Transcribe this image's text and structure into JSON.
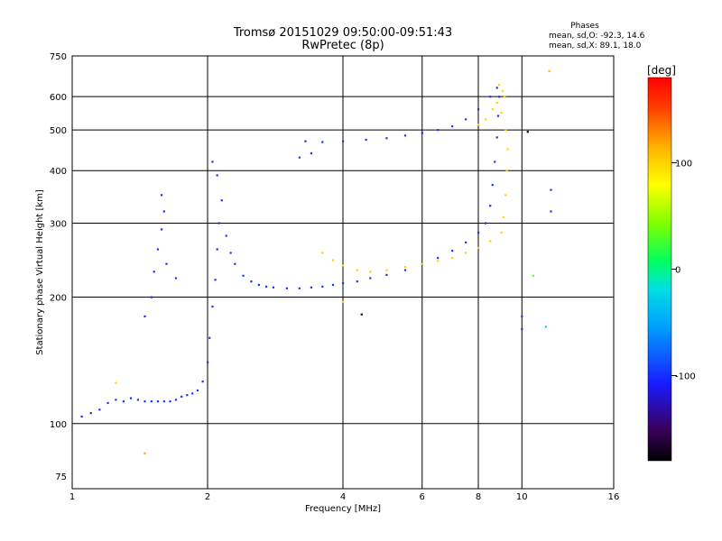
{
  "title": {
    "line1": "Tromsø 20151029 09:50:00-09:51:43",
    "line2": "RwPretec (8p)"
  },
  "phase_stats": {
    "header": "Phases",
    "line_o": "mean, sd,O: -92.3, 14.6",
    "line_x": "mean, sd,X:  89.1, 18.0"
  },
  "colorbar": {
    "label": "[deg]",
    "ticks": [
      "100",
      "0",
      "-100"
    ],
    "tick_values": [
      100,
      0,
      -100
    ],
    "range": [
      -180,
      180
    ]
  },
  "chart_data": {
    "type": "scatter",
    "title": "Tromsø 20151029 09:50:00-09:51:43",
    "subtitle": "RwPretec (8p)",
    "xlabel": "Frequency [MHz]",
    "ylabel": "Stationary phase Virtual Height [km]",
    "x_scale": "log2",
    "y_scale": "log",
    "xlim": [
      1,
      16
    ],
    "ylim": [
      70,
      750
    ],
    "x_ticks": [
      1,
      2,
      4,
      6,
      8,
      10,
      16
    ],
    "y_ticks": [
      75,
      100,
      200,
      300,
      400,
      500,
      600,
      750
    ],
    "grid": true,
    "series": [
      {
        "color_value": -100,
        "points": [
          [
            1.05,
            104
          ],
          [
            1.1,
            106
          ],
          [
            1.15,
            108
          ],
          [
            1.2,
            112
          ],
          [
            1.25,
            114
          ],
          [
            1.3,
            113
          ],
          [
            1.35,
            115
          ],
          [
            1.4,
            114
          ],
          [
            1.45,
            113
          ],
          [
            1.5,
            113
          ],
          [
            1.55,
            113
          ],
          [
            1.6,
            113
          ],
          [
            1.65,
            113
          ],
          [
            1.7,
            114
          ],
          [
            1.75,
            116
          ],
          [
            1.8,
            117
          ],
          [
            1.85,
            118
          ],
          [
            1.9,
            120
          ],
          [
            1.95,
            126
          ],
          [
            2.0,
            140
          ],
          [
            2.02,
            160
          ],
          [
            2.05,
            190
          ],
          [
            2.08,
            220
          ],
          [
            2.1,
            260
          ],
          [
            2.12,
            300
          ],
          [
            2.15,
            340
          ],
          [
            2.1,
            390
          ],
          [
            2.05,
            420
          ],
          [
            2.2,
            280
          ],
          [
            2.25,
            255
          ],
          [
            2.3,
            240
          ],
          [
            2.4,
            225
          ],
          [
            2.5,
            218
          ],
          [
            2.6,
            214
          ],
          [
            2.7,
            212
          ],
          [
            2.8,
            211
          ],
          [
            3.0,
            210
          ],
          [
            3.2,
            210
          ],
          [
            3.4,
            211
          ],
          [
            3.6,
            212
          ],
          [
            3.8,
            214
          ],
          [
            4.0,
            216
          ],
          [
            4.3,
            218
          ],
          [
            4.6,
            222
          ],
          [
            5.0,
            226
          ],
          [
            5.5,
            232
          ],
          [
            6.0,
            240
          ],
          [
            6.5,
            248
          ],
          [
            7.0,
            258
          ],
          [
            7.5,
            270
          ],
          [
            8.0,
            285
          ],
          [
            8.3,
            300
          ],
          [
            8.5,
            330
          ],
          [
            8.6,
            370
          ],
          [
            8.7,
            420
          ],
          [
            8.8,
            480
          ],
          [
            8.85,
            540
          ],
          [
            8.9,
            600
          ],
          [
            8.8,
            630
          ],
          [
            8.5,
            600
          ],
          [
            8.0,
            560
          ],
          [
            7.5,
            530
          ],
          [
            7.0,
            510
          ],
          [
            6.5,
            500
          ],
          [
            6.0,
            492
          ],
          [
            5.5,
            485
          ],
          [
            5.0,
            478
          ],
          [
            4.5,
            474
          ],
          [
            4.0,
            470
          ],
          [
            3.6,
            468
          ],
          [
            3.3,
            470
          ],
          [
            3.2,
            430
          ],
          [
            3.4,
            440
          ],
          [
            1.45,
            180
          ],
          [
            1.5,
            200
          ],
          [
            1.52,
            230
          ],
          [
            1.55,
            260
          ],
          [
            1.58,
            290
          ],
          [
            1.6,
            320
          ],
          [
            1.58,
            350
          ],
          [
            1.62,
            240
          ],
          [
            1.7,
            222
          ]
        ]
      },
      {
        "color_value": 100,
        "points": [
          [
            3.6,
            255
          ],
          [
            3.8,
            245
          ],
          [
            4.0,
            238
          ],
          [
            4.3,
            232
          ],
          [
            4.6,
            230
          ],
          [
            5.0,
            232
          ],
          [
            5.5,
            236
          ],
          [
            6.0,
            240
          ],
          [
            6.5,
            244
          ],
          [
            7.0,
            248
          ],
          [
            7.5,
            255
          ],
          [
            8.0,
            262
          ],
          [
            8.5,
            272
          ],
          [
            9.0,
            285
          ],
          [
            9.1,
            310
          ],
          [
            9.2,
            350
          ],
          [
            9.25,
            400
          ],
          [
            9.3,
            450
          ],
          [
            9.2,
            500
          ],
          [
            9.0,
            550
          ],
          [
            8.8,
            580
          ],
          [
            8.6,
            560
          ],
          [
            8.3,
            530
          ],
          [
            8.0,
            515
          ],
          [
            9.15,
            600
          ],
          [
            9.05,
            620
          ],
          [
            8.9,
            640
          ]
        ]
      }
    ],
    "outliers": [
      [
        1.25,
        125,
        100
      ],
      [
        1.45,
        85,
        120
      ],
      [
        10.6,
        225,
        30
      ],
      [
        11.5,
        690,
        110
      ],
      [
        11.6,
        360,
        -100
      ],
      [
        11.6,
        320,
        -100
      ],
      [
        10.0,
        180,
        -100
      ],
      [
        10.0,
        168,
        -100
      ],
      [
        11.3,
        170,
        -30
      ],
      [
        10.3,
        495,
        -170
      ],
      [
        4.4,
        182,
        -170
      ],
      [
        4.0,
        195,
        100
      ]
    ]
  }
}
